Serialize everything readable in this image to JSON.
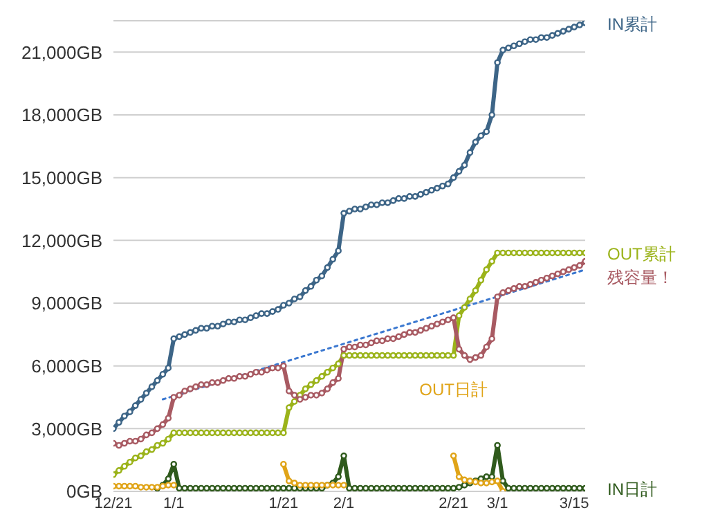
{
  "chart_data": {
    "type": "line",
    "marker": "circle",
    "line_style": "solid",
    "grid": "y",
    "legend": false,
    "categories": [
      "12/21",
      null,
      null,
      null,
      null,
      null,
      null,
      null,
      null,
      null,
      null,
      "1/1",
      null,
      null,
      null,
      null,
      null,
      null,
      null,
      null,
      null,
      null,
      null,
      null,
      null,
      null,
      null,
      null,
      null,
      null,
      null,
      "1/21",
      null,
      null,
      null,
      null,
      null,
      null,
      null,
      null,
      null,
      null,
      "2/1",
      null,
      null,
      null,
      null,
      null,
      null,
      null,
      null,
      null,
      null,
      null,
      null,
      null,
      null,
      null,
      null,
      null,
      null,
      null,
      "2/21",
      null,
      null,
      null,
      null,
      null,
      null,
      null,
      "3/1",
      null,
      null,
      null,
      null,
      null,
      null,
      null,
      null,
      null,
      null,
      null,
      null,
      null,
      "3/15",
      null,
      null
    ],
    "ylim": [
      0,
      22500
    ],
    "yticks": [
      {
        "value": 0,
        "label": "0GB"
      },
      {
        "value": 3000,
        "label": "3,000GB"
      },
      {
        "value": 6000,
        "label": "6,000GB"
      },
      {
        "value": 9000,
        "label": "9,000GB"
      },
      {
        "value": 12000,
        "label": "12,000GB"
      },
      {
        "value": 15000,
        "label": "15,000GB"
      },
      {
        "value": 18000,
        "label": "18,000GB"
      },
      {
        "value": 21000,
        "label": "21,000GB"
      }
    ],
    "series": [
      {
        "name": "IN日計",
        "color": "#2f5a1c",
        "values": [
          null,
          null,
          null,
          null,
          null,
          null,
          null,
          null,
          150,
          300,
          600,
          1300,
          150,
          150,
          150,
          150,
          150,
          150,
          150,
          150,
          150,
          150,
          150,
          150,
          150,
          150,
          150,
          150,
          150,
          150,
          150,
          150,
          150,
          150,
          150,
          150,
          150,
          150,
          150,
          300,
          400,
          700,
          1700,
          150,
          150,
          150,
          150,
          150,
          150,
          150,
          150,
          150,
          150,
          150,
          150,
          150,
          150,
          150,
          150,
          150,
          150,
          150,
          150,
          200,
          300,
          400,
          500,
          600,
          700,
          700,
          2200,
          500,
          150,
          150,
          150,
          150,
          150,
          150,
          150,
          150,
          150,
          150,
          150,
          150,
          150,
          150,
          150
        ]
      },
      {
        "name": "OUT日計",
        "color": "#e0a418",
        "values": [
          250,
          250,
          250,
          250,
          250,
          200,
          200,
          200,
          200,
          250,
          300,
          300,
          null,
          null,
          null,
          null,
          null,
          null,
          null,
          null,
          null,
          null,
          null,
          null,
          null,
          null,
          null,
          null,
          null,
          null,
          null,
          1300,
          500,
          400,
          300,
          300,
          300,
          300,
          300,
          300,
          300,
          300,
          300,
          null,
          null,
          null,
          null,
          null,
          null,
          null,
          null,
          null,
          null,
          null,
          null,
          null,
          null,
          null,
          null,
          null,
          null,
          null,
          1700,
          700,
          550,
          500,
          450,
          400,
          400,
          450,
          500,
          0,
          null,
          null,
          null,
          null,
          null,
          null,
          null,
          null,
          null,
          null,
          null,
          null,
          null,
          null,
          null
        ]
      },
      {
        "name": "OUT累計",
        "color": "#9bb31a",
        "values": [
          800,
          1000,
          1200,
          1400,
          1600,
          1700,
          1900,
          2000,
          2200,
          2300,
          2500,
          2800,
          2800,
          2800,
          2800,
          2800,
          2800,
          2800,
          2800,
          2800,
          2800,
          2800,
          2800,
          2800,
          2800,
          2800,
          2800,
          2800,
          2800,
          2800,
          2800,
          2800,
          4000,
          4300,
          4600,
          4900,
          5100,
          5300,
          5500,
          5700,
          5900,
          6100,
          6500,
          6500,
          6500,
          6500,
          6500,
          6500,
          6500,
          6500,
          6500,
          6500,
          6500,
          6500,
          6500,
          6500,
          6500,
          6500,
          6500,
          6500,
          6500,
          6500,
          6500,
          8400,
          8800,
          9200,
          9600,
          10100,
          10600,
          11000,
          11400,
          11400,
          11400,
          11400,
          11400,
          11400,
          11400,
          11400,
          11400,
          11400,
          11400,
          11400,
          11400,
          11400,
          11400,
          11400,
          11400
        ]
      },
      {
        "name": "残容量！",
        "color": "#a85a62",
        "values": [
          2300,
          2200,
          2300,
          2400,
          2400,
          2500,
          2700,
          2800,
          3000,
          3200,
          3500,
          4500,
          4600,
          4800,
          4900,
          5000,
          5100,
          5100,
          5200,
          5200,
          5300,
          5400,
          5400,
          5500,
          5500,
          5600,
          5700,
          5700,
          5800,
          5900,
          5900,
          6000,
          4800,
          4600,
          4400,
          4500,
          4600,
          4600,
          4700,
          4900,
          5200,
          5400,
          6800,
          6900,
          6900,
          7000,
          7000,
          7100,
          7200,
          7200,
          7300,
          7300,
          7400,
          7500,
          7600,
          7600,
          7700,
          7800,
          7900,
          8000,
          8100,
          8200,
          8300,
          6800,
          6500,
          6300,
          6400,
          6500,
          6900,
          7300,
          9300,
          9500,
          9600,
          9700,
          9800,
          9800,
          9900,
          10000,
          10100,
          10200,
          10300,
          10400,
          10500,
          10600,
          10700,
          10800,
          11000
        ]
      },
      {
        "name": "IN累計",
        "color": "#3d6587",
        "values": [
          3000,
          3300,
          3600,
          3800,
          4100,
          4400,
          4700,
          5000,
          5300,
          5600,
          5900,
          7300,
          7400,
          7500,
          7600,
          7700,
          7800,
          7800,
          7900,
          7900,
          8000,
          8100,
          8100,
          8200,
          8200,
          8300,
          8400,
          8500,
          8500,
          8600,
          8700,
          8900,
          9000,
          9200,
          9300,
          9600,
          9800,
          10100,
          10300,
          10700,
          11100,
          11500,
          13300,
          13400,
          13500,
          13500,
          13600,
          13700,
          13700,
          13800,
          13800,
          13900,
          14000,
          14000,
          14100,
          14100,
          14200,
          14300,
          14400,
          14500,
          14600,
          14700,
          15000,
          15300,
          15600,
          16200,
          16700,
          17000,
          17200,
          18000,
          20500,
          21100,
          21200,
          21300,
          21400,
          21500,
          21600,
          21600,
          21700,
          21700,
          21800,
          21900,
          22000,
          22100,
          22200,
          22300,
          22400
        ]
      },
      {
        "type": "line",
        "color": "#3b78d0",
        "line_style": "dotted",
        "marker": "none",
        "values": [
          null,
          null,
          null,
          null,
          null,
          null,
          null,
          null,
          null,
          4400,
          null,
          null,
          null,
          null,
          null,
          null,
          null,
          null,
          null,
          null,
          null,
          null,
          null,
          null,
          null,
          null,
          null,
          null,
          null,
          null,
          null,
          null,
          null,
          null,
          null,
          null,
          null,
          null,
          null,
          null,
          null,
          null,
          null,
          null,
          null,
          null,
          null,
          null,
          null,
          null,
          null,
          null,
          null,
          null,
          null,
          null,
          null,
          null,
          null,
          null,
          null,
          null,
          null,
          null,
          null,
          null,
          null,
          null,
          null,
          null,
          null,
          null,
          null,
          null,
          null,
          null,
          null,
          null,
          null,
          null,
          null,
          null,
          null,
          null,
          null,
          null,
          10600
        ]
      }
    ]
  }
}
